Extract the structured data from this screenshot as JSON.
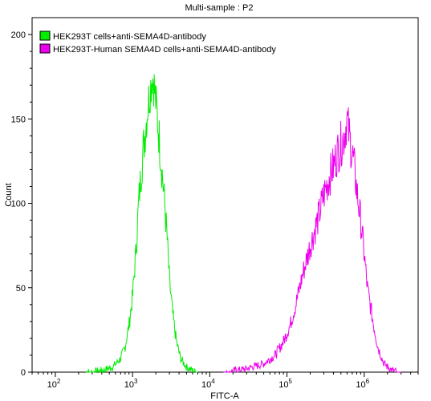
{
  "chart_data": {
    "type": "line",
    "title": "Multi-sample : P2",
    "xlabel": "FITC-A",
    "ylabel": "Count",
    "xscale": "log",
    "xlim": [
      50,
      5000000
    ],
    "ylim": [
      0,
      210
    ],
    "x_ticks": [
      {
        "value": 100,
        "base": "10",
        "exp": "2"
      },
      {
        "value": 1000,
        "base": "10",
        "exp": "3"
      },
      {
        "value": 10000,
        "base": "10",
        "exp": "4"
      },
      {
        "value": 100000,
        "base": "10",
        "exp": "5"
      },
      {
        "value": 1000000,
        "base": "10",
        "exp": "6"
      }
    ],
    "y_ticks": [
      0,
      50,
      100,
      150,
      200
    ],
    "legend_position": "top-left",
    "series": [
      {
        "name": "HEK293T cells+anti-SEMA4D-antibody",
        "color": "#00ee00",
        "x": [
          250,
          400,
          550,
          700,
          800,
          900,
          1000,
          1100,
          1200,
          1300,
          1400,
          1500,
          1600,
          1700,
          1800,
          1900,
          2000,
          2100,
          2200,
          2400,
          2600,
          2800,
          3000,
          3300,
          3700,
          4200,
          5000,
          6000,
          7000
        ],
        "y": [
          0,
          1,
          3,
          8,
          15,
          28,
          45,
          70,
          100,
          120,
          135,
          148,
          160,
          168,
          176,
          170,
          160,
          150,
          140,
          120,
          100,
          80,
          55,
          35,
          18,
          8,
          3,
          1,
          0
        ]
      },
      {
        "name": "HEK293T-Human SEMA4D cells+anti-SEMA4D-antibody",
        "color": "#ee00ee",
        "x": [
          15000,
          30000,
          50000,
          70000,
          90000,
          110000,
          130000,
          160000,
          200000,
          250000,
          300000,
          350000,
          400000,
          450000,
          500000,
          550000,
          600000,
          650000,
          700000,
          750000,
          800000,
          900000,
          1000000,
          1100000,
          1300000,
          1500000,
          1800000,
          2300000,
          3000000
        ],
        "y": [
          0,
          2,
          5,
          10,
          18,
          28,
          40,
          58,
          75,
          90,
          105,
          115,
          122,
          130,
          135,
          140,
          150,
          138,
          130,
          120,
          108,
          90,
          70,
          50,
          30,
          15,
          5,
          1,
          0
        ]
      }
    ]
  }
}
